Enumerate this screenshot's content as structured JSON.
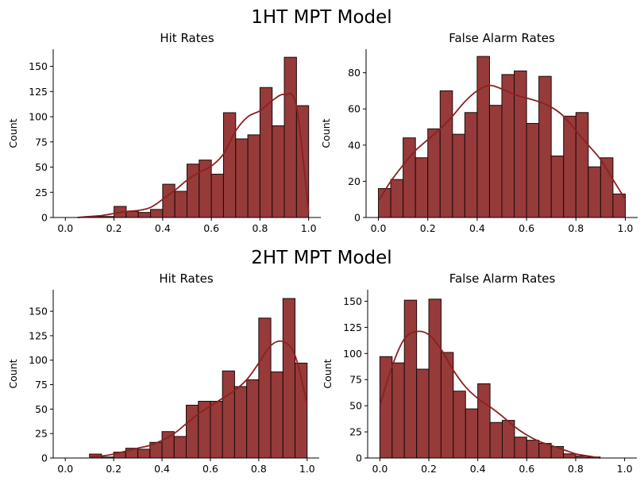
{
  "colors": {
    "bar": "#973a3a",
    "edge": "#1a0a0a",
    "kde": "#8b2121"
  },
  "figure": {
    "top_title": "1HT MPT Model",
    "bottom_title": "2HT MPT Model"
  },
  "chart_data": [
    {
      "type": "bar",
      "title": "Hit Rates",
      "group": "1HT MPT Model",
      "xlabel": "",
      "ylabel": "Count",
      "xlim": [
        -0.05,
        1.05
      ],
      "ylim": [
        0,
        167
      ],
      "xticks": [
        0.0,
        0.2,
        0.4,
        0.6,
        0.8,
        1.0
      ],
      "xtick_labels": [
        "0.0",
        "0.2",
        "0.4",
        "0.6",
        "0.8",
        "1.0"
      ],
      "yticks": [
        0,
        25,
        50,
        75,
        100,
        125,
        150
      ],
      "bin_edges": [
        0.05,
        0.1,
        0.15,
        0.2,
        0.25,
        0.3,
        0.35,
        0.4,
        0.45,
        0.5,
        0.55,
        0.6,
        0.65,
        0.7,
        0.75,
        0.8,
        0.85,
        0.9,
        0.95,
        1.0
      ],
      "values": [
        0,
        1,
        1,
        11,
        6,
        5,
        8,
        33,
        26,
        53,
        57,
        43,
        104,
        78,
        82,
        129,
        91,
        159,
        111
      ],
      "kde": {
        "x": [
          0.05,
          0.1,
          0.15,
          0.2,
          0.25,
          0.3,
          0.35,
          0.4,
          0.45,
          0.5,
          0.55,
          0.6,
          0.65,
          0.7,
          0.75,
          0.8,
          0.85,
          0.9,
          0.95,
          1.0
        ],
        "y": [
          0,
          1,
          2,
          4,
          6,
          7,
          10,
          18,
          27,
          37,
          45,
          51,
          63,
          86,
          100,
          106,
          116,
          122,
          110,
          5
        ]
      }
    },
    {
      "type": "bar",
      "title": "False Alarm Rates",
      "group": "1HT MPT Model",
      "xlabel": "",
      "ylabel": "Count",
      "xlim": [
        -0.05,
        1.05
      ],
      "ylim": [
        0,
        93
      ],
      "xticks": [
        0.0,
        0.2,
        0.4,
        0.6,
        0.8,
        1.0
      ],
      "xtick_labels": [
        "0.0",
        "0.2",
        "0.4",
        "0.6",
        "0.8",
        "1.0"
      ],
      "yticks": [
        0,
        20,
        40,
        60,
        80
      ],
      "bin_edges": [
        0.0,
        0.05,
        0.1,
        0.15,
        0.2,
        0.25,
        0.3,
        0.35,
        0.4,
        0.45,
        0.5,
        0.55,
        0.6,
        0.65,
        0.7,
        0.75,
        0.8,
        0.85,
        0.9,
        0.95,
        1.0
      ],
      "values": [
        16,
        21,
        44,
        33,
        49,
        70,
        46,
        58,
        89,
        62,
        79,
        81,
        52,
        78,
        34,
        56,
        58,
        28,
        33,
        13
      ],
      "kde": {
        "x": [
          0.0,
          0.05,
          0.1,
          0.15,
          0.2,
          0.25,
          0.3,
          0.35,
          0.4,
          0.45,
          0.5,
          0.55,
          0.6,
          0.65,
          0.7,
          0.75,
          0.8,
          0.85,
          0.9,
          0.95,
          1.0
        ],
        "y": [
          9,
          20,
          29,
          37,
          43,
          49,
          56,
          64,
          70,
          73,
          71,
          68,
          66,
          64,
          61,
          56,
          48,
          40,
          32,
          21,
          10
        ]
      }
    },
    {
      "type": "bar",
      "title": "Hit Rates",
      "group": "2HT MPT Model",
      "xlabel": "",
      "ylabel": "Count",
      "xlim": [
        -0.05,
        1.05
      ],
      "ylim": [
        0,
        172
      ],
      "xticks": [
        0.0,
        0.2,
        0.4,
        0.6,
        0.8,
        1.0
      ],
      "xtick_labels": [
        "0.0",
        "0.2",
        "0.4",
        "0.6",
        "0.8",
        "1.0"
      ],
      "yticks": [
        0,
        25,
        50,
        75,
        100,
        125,
        150
      ],
      "bin_edges": [
        0.05,
        0.1,
        0.15,
        0.2,
        0.25,
        0.3,
        0.35,
        0.4,
        0.45,
        0.5,
        0.55,
        0.6,
        0.65,
        0.7,
        0.75,
        0.8,
        0.85,
        0.9,
        0.95,
        1.0
      ],
      "values": [
        0,
        4,
        1,
        6,
        10,
        9,
        16,
        27,
        22,
        54,
        58,
        58,
        89,
        73,
        80,
        143,
        88,
        163,
        97
      ],
      "kde": {
        "x": [
          0.1,
          0.15,
          0.2,
          0.25,
          0.3,
          0.35,
          0.4,
          0.45,
          0.5,
          0.55,
          0.6,
          0.65,
          0.7,
          0.75,
          0.8,
          0.85,
          0.9,
          0.95,
          1.0
        ],
        "y": [
          1,
          2,
          4,
          7,
          10,
          13,
          18,
          25,
          35,
          45,
          53,
          61,
          69,
          80,
          97,
          115,
          119,
          105,
          55
        ]
      }
    },
    {
      "type": "bar",
      "title": "False Alarm Rates",
      "group": "2HT MPT Model",
      "xlabel": "",
      "ylabel": "Count",
      "xlim": [
        -0.05,
        1.05
      ],
      "ylim": [
        0,
        161
      ],
      "xticks": [
        0.0,
        0.2,
        0.4,
        0.6,
        0.8,
        1.0
      ],
      "xtick_labels": [
        "0.0",
        "0.2",
        "0.4",
        "0.6",
        "0.8",
        "1.0"
      ],
      "yticks": [
        0,
        25,
        50,
        75,
        100,
        125,
        150
      ],
      "bin_edges": [
        0.0,
        0.05,
        0.1,
        0.15,
        0.2,
        0.25,
        0.3,
        0.35,
        0.4,
        0.45,
        0.5,
        0.55,
        0.6,
        0.65,
        0.7,
        0.75,
        0.8,
        0.85,
        0.9
      ],
      "values": [
        97,
        91,
        151,
        85,
        152,
        101,
        64,
        47,
        71,
        34,
        36,
        20,
        17,
        14,
        11,
        4,
        2,
        1
      ],
      "kde": {
        "x": [
          0.0,
          0.05,
          0.1,
          0.15,
          0.2,
          0.25,
          0.3,
          0.35,
          0.4,
          0.45,
          0.5,
          0.55,
          0.6,
          0.65,
          0.7,
          0.75,
          0.8,
          0.85,
          0.9
        ],
        "y": [
          50,
          88,
          114,
          121,
          118,
          104,
          84,
          68,
          57,
          49,
          40,
          30,
          22,
          16,
          12,
          8,
          4,
          2,
          0
        ]
      }
    }
  ]
}
